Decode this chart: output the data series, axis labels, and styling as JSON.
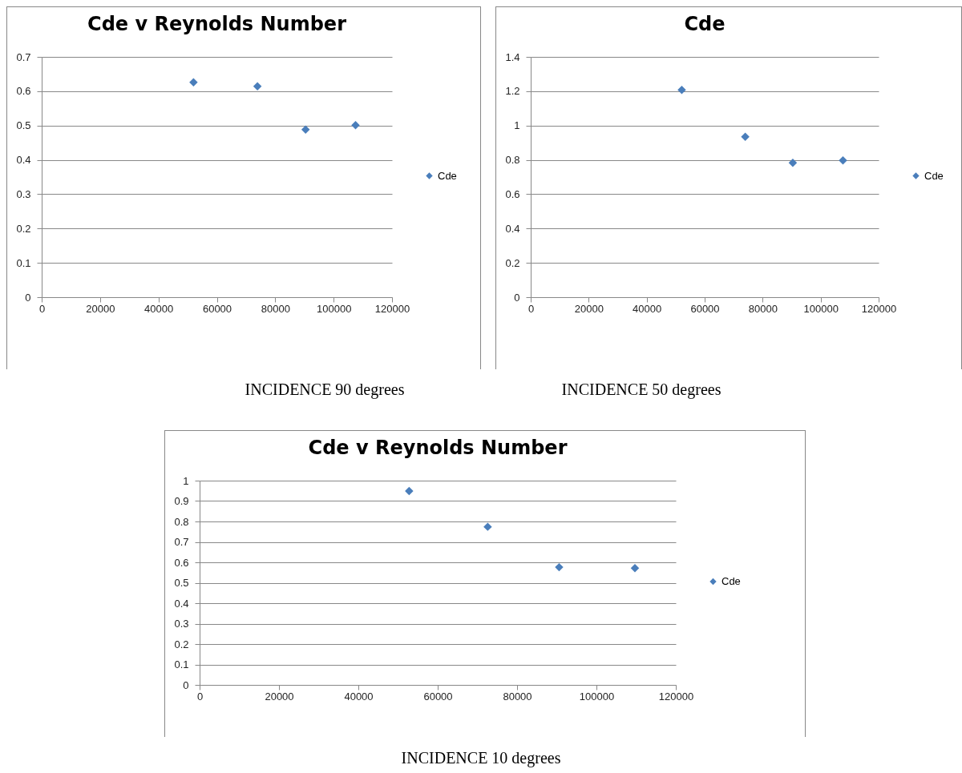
{
  "chart_data": [
    {
      "type": "scatter",
      "title": "Cde v Reynolds Number",
      "x": [
        52000,
        73900,
        90400,
        107500
      ],
      "series": [
        {
          "name": "Cde",
          "color": "#4a7ebb",
          "values": [
            0.626,
            0.614,
            0.488,
            0.501
          ]
        }
      ],
      "xlim": [
        0,
        120000
      ],
      "xticks": [
        0,
        20000,
        40000,
        60000,
        80000,
        100000,
        120000
      ],
      "ylim": [
        0,
        0.7
      ],
      "yticks": [
        0,
        0.1,
        0.2,
        0.3,
        0.4,
        0.5,
        0.6,
        0.7
      ],
      "grid": "y",
      "legend": "right",
      "marker": "diamond",
      "annotations": [
        "INCIDENCE 90 degrees"
      ]
    },
    {
      "type": "scatter",
      "title": "Cde",
      "x": [
        52100,
        74000,
        90400,
        107700
      ],
      "series": [
        {
          "name": "Cde",
          "color": "#4a7ebb",
          "values": [
            1.207,
            0.934,
            0.783,
            0.797
          ]
        }
      ],
      "xlim": [
        0,
        120000
      ],
      "xticks": [
        0,
        20000,
        40000,
        60000,
        80000,
        100000,
        120000
      ],
      "ylim": [
        0,
        1.4
      ],
      "yticks": [
        0,
        0.2,
        0.4,
        0.6,
        0.8,
        1,
        1.2,
        1.4
      ],
      "grid": "y",
      "legend": "right",
      "marker": "diamond",
      "annotations": [
        "INCIDENCE 50 degrees"
      ]
    },
    {
      "type": "scatter",
      "title": "Cde v Reynolds Number",
      "x": [
        52800,
        72600,
        90600,
        109700
      ],
      "series": [
        {
          "name": "Cde",
          "color": "#4a7ebb",
          "values": [
            0.949,
            0.774,
            0.576,
            0.572
          ]
        }
      ],
      "xlim": [
        0,
        120000
      ],
      "xticks": [
        0,
        20000,
        40000,
        60000,
        80000,
        100000,
        120000
      ],
      "ylim": [
        0,
        1
      ],
      "yticks": [
        0,
        0.1,
        0.2,
        0.3,
        0.4,
        0.5,
        0.6,
        0.7,
        0.8,
        0.9,
        1
      ],
      "grid": "y",
      "legend": "right",
      "marker": "diamond",
      "annotations": [
        "INCIDENCE 10 degrees"
      ]
    }
  ]
}
